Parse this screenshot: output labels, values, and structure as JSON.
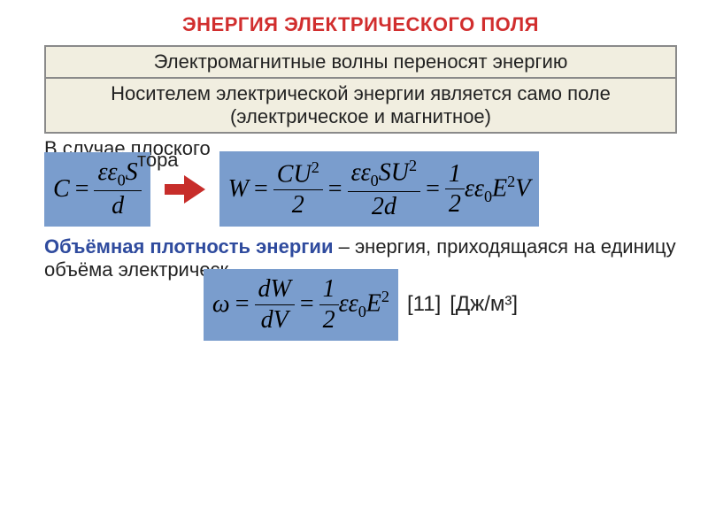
{
  "colors": {
    "title": "#d12e2e",
    "box_border": "#8a8a8a",
    "box_bg": "#f1eee0",
    "formula_bg": "#7a9dcd",
    "arrow": "#c72d2a",
    "def_label": "#2f4b9e",
    "text": "#222222"
  },
  "sizes": {
    "title_fontsize": 22,
    "box_fontsize": 22,
    "plain_fontsize": 22,
    "formula_fontsize": 28,
    "def_fontsize": 22,
    "unit_fontsize": 24
  },
  "title": "ЭНЕРГИЯ ЭЛЕКТРИЧЕСКОГО ПОЛЯ",
  "box1": "Электромагнитные волны переносят энергию",
  "box2": "Носителем электрической энергии является само поле (электрическое и магнитное)",
  "plain_line": "В случае плоского",
  "plain_line_tail": "тора",
  "formula_C": {
    "lhs": "C",
    "num": "εε<span class='sub'>0</span>S",
    "den": "d"
  },
  "formula_W": {
    "lhs": "W",
    "t1_num": "CU<span class='sup'>2</span>",
    "t1_den": "2",
    "t2_num": "εε<span class='sub'>0</span>SU<span class='sup'>2</span>",
    "t2_den": "2d",
    "t3_coef_num": "1",
    "t3_coef_den": "2",
    "t3_rest": "εε<span class='sub'>0</span>E<span class='sup'>2</span>V"
  },
  "def_label": "Объёмная плотность энергии",
  "def_text": " – энергия, приходящаяся на единицу объёма электрическ",
  "formula_omega": {
    "lhs": "ω",
    "t1_num": "dW",
    "t1_den": "dV",
    "t2_num": "1",
    "t2_den": "2",
    "t2_rest": "εε<span class='sub'>0</span>E<span class='sup'>2</span>"
  },
  "ref": "[11]",
  "unit": "[Дж/м³]"
}
